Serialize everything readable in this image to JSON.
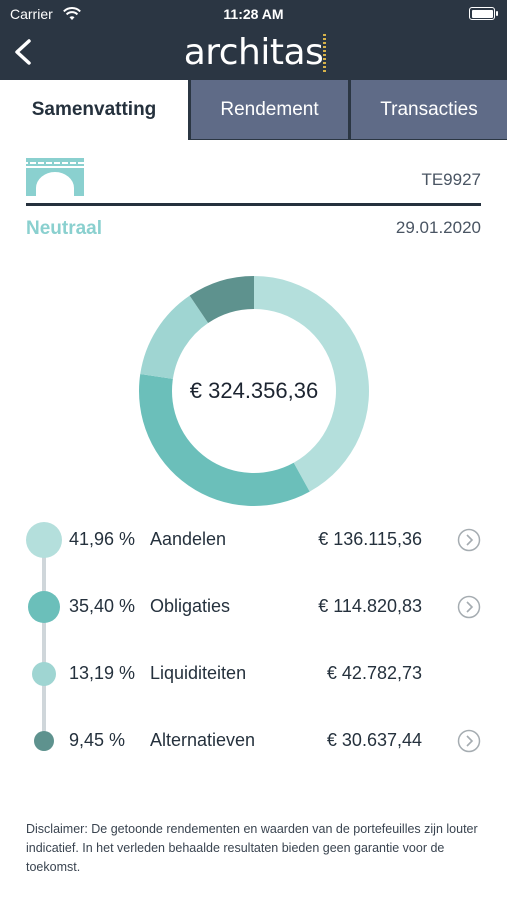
{
  "status_bar": {
    "carrier": "Carrier",
    "time": "11:28 AM"
  },
  "header": {
    "logo": "architas"
  },
  "tabs": [
    {
      "label": "Samenvatting",
      "active": true
    },
    {
      "label": "Rendement",
      "active": false
    },
    {
      "label": "Transacties",
      "active": false
    }
  ],
  "portfolio": {
    "account": "TE9927",
    "profile": "Neutraal",
    "date": "29.01.2020",
    "total": "€ 324.356,36"
  },
  "colors": {
    "aandelen": "#b4dfdc",
    "obligaties": "#6bbfba",
    "liquiditeiten": "#9fd5d2",
    "alternatieven": "#5e928e",
    "profile": "#8ad0cf",
    "header": "#2b3643",
    "tab_inactive": "#5f6b87"
  },
  "allocations": [
    {
      "percent": "41,96 %",
      "label": "Aandelen",
      "amount": "€ 136.115,36",
      "share": 41.96,
      "has_detail": true
    },
    {
      "percent": "35,40 %",
      "label": "Obligaties",
      "amount": "€ 114.820,83",
      "share": 35.4,
      "has_detail": true
    },
    {
      "percent": "13,19 %",
      "label": "Liquiditeiten",
      "amount": "€ 42.782,73",
      "share": 13.19,
      "has_detail": false
    },
    {
      "percent": "9,45 %",
      "label": "Alternatieven",
      "amount": "€ 30.637,44",
      "share": 9.45,
      "has_detail": true
    }
  ],
  "disclaimer": "Disclaimer: De getoonde rendementen en waarden van de portefeuilles zijn louter indicatief. In het verleden behaalde resultaten bieden geen garantie voor de toekomst."
}
